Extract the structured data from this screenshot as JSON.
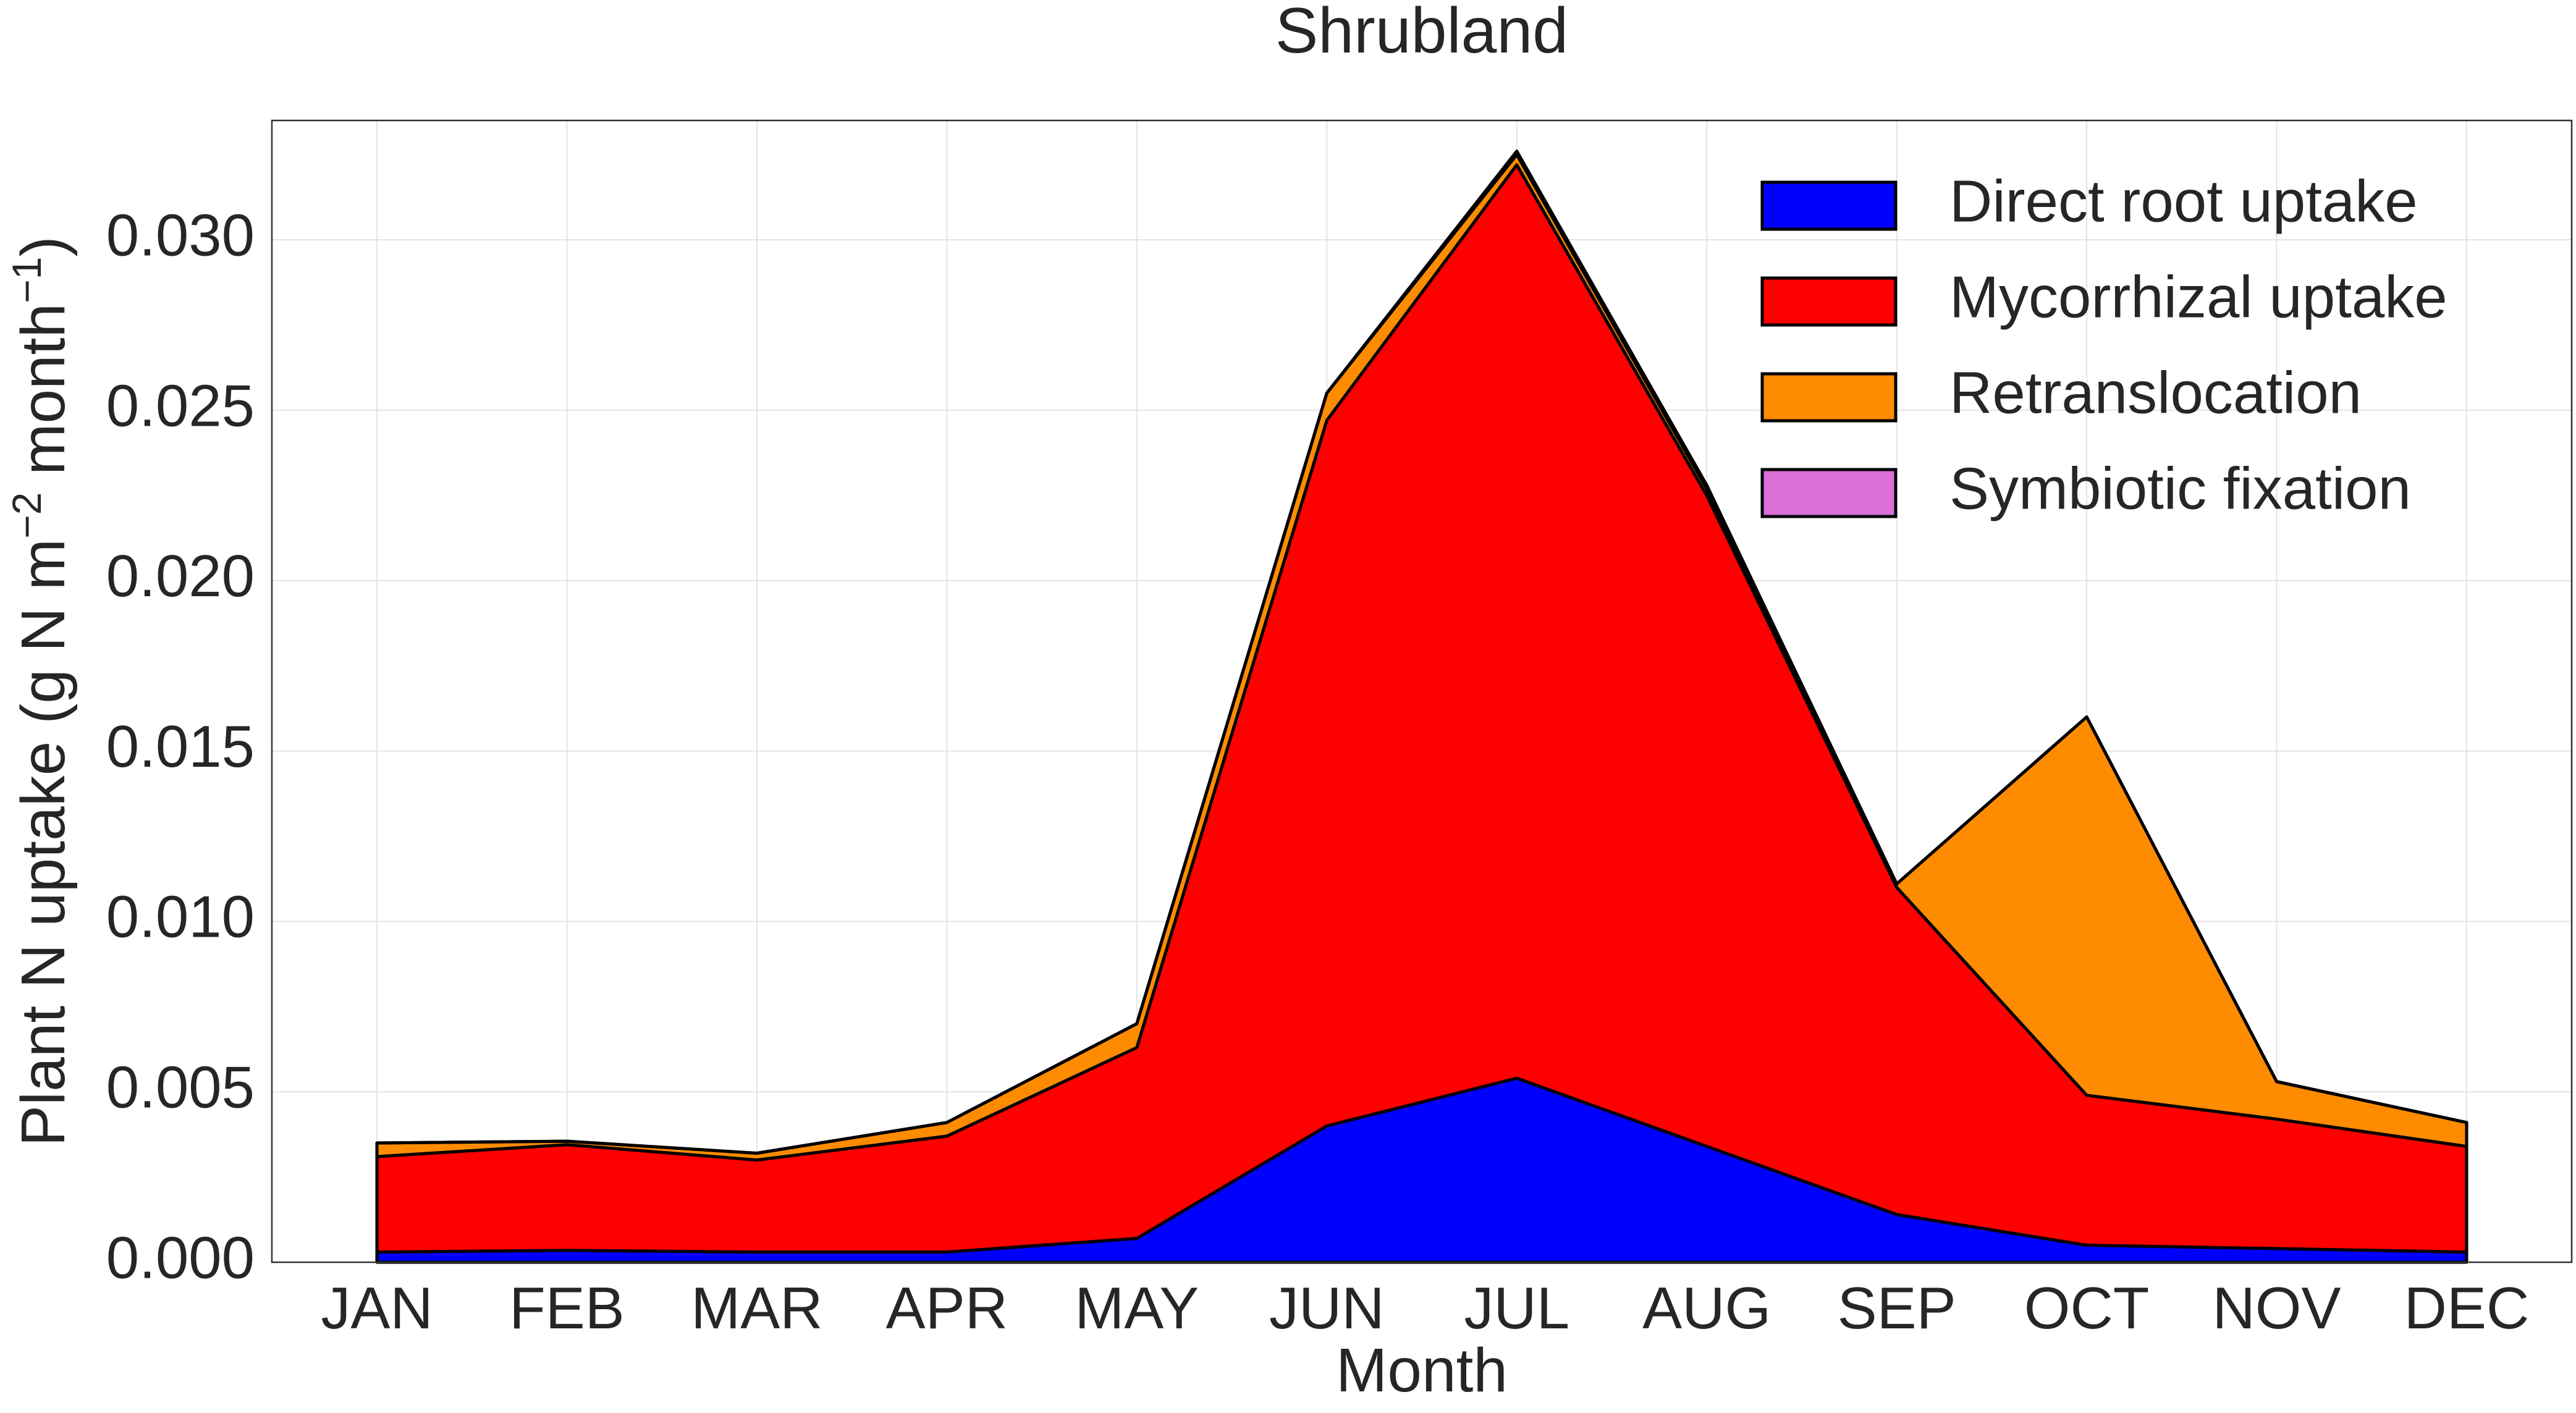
{
  "chart_data": {
    "type": "area",
    "stacked": true,
    "title": "Shrubland",
    "xlabel": "Month",
    "ylabel": "Plant N uptake (g N m",
    "ylabel_sup1": "−2",
    "ylabel_mid": " month",
    "ylabel_sup2": "−1",
    "ylabel_end": ")",
    "categories": [
      "JAN",
      "FEB",
      "MAR",
      "APR",
      "MAY",
      "JUN",
      "JUL",
      "AUG",
      "SEP",
      "OCT",
      "NOV",
      "DEC"
    ],
    "ylim": [
      0,
      0.0335
    ],
    "yticks": [
      0.0,
      0.005,
      0.01,
      0.015,
      0.02,
      0.025,
      0.03
    ],
    "ytick_labels": [
      "0.000",
      "0.005",
      "0.010",
      "0.015",
      "0.020",
      "0.025",
      "0.030"
    ],
    "grid": true,
    "legend_position": "top-right",
    "series": [
      {
        "name": "Direct root uptake",
        "color": "#0000ff",
        "values": [
          0.0003,
          0.00035,
          0.0003,
          0.0003,
          0.0007,
          0.004,
          0.0054,
          0.0034,
          0.0014,
          0.0005,
          0.0004,
          0.0003
        ]
      },
      {
        "name": "Mycorrhizal uptake",
        "color": "#ff0000",
        "values": [
          0.0028,
          0.0031,
          0.0027,
          0.0034,
          0.0056,
          0.0207,
          0.0268,
          0.0191,
          0.0096,
          0.0044,
          0.0038,
          0.0031
        ]
      },
      {
        "name": "Retranslocation",
        "color": "#ff8c00",
        "values": [
          0.0004,
          0.0001,
          0.0002,
          0.0004,
          0.0007,
          0.0008,
          0.0003,
          0.0002,
          0.0001,
          0.0111,
          0.0011,
          0.0007
        ]
      },
      {
        "name": "Symbiotic fixation",
        "color": "#da70d6",
        "values": [
          0.0,
          0.0,
          0.0,
          0.0,
          0.0,
          0.0,
          0.0001,
          0.0001,
          0.0,
          0.0,
          0.0,
          0.0
        ]
      }
    ]
  }
}
